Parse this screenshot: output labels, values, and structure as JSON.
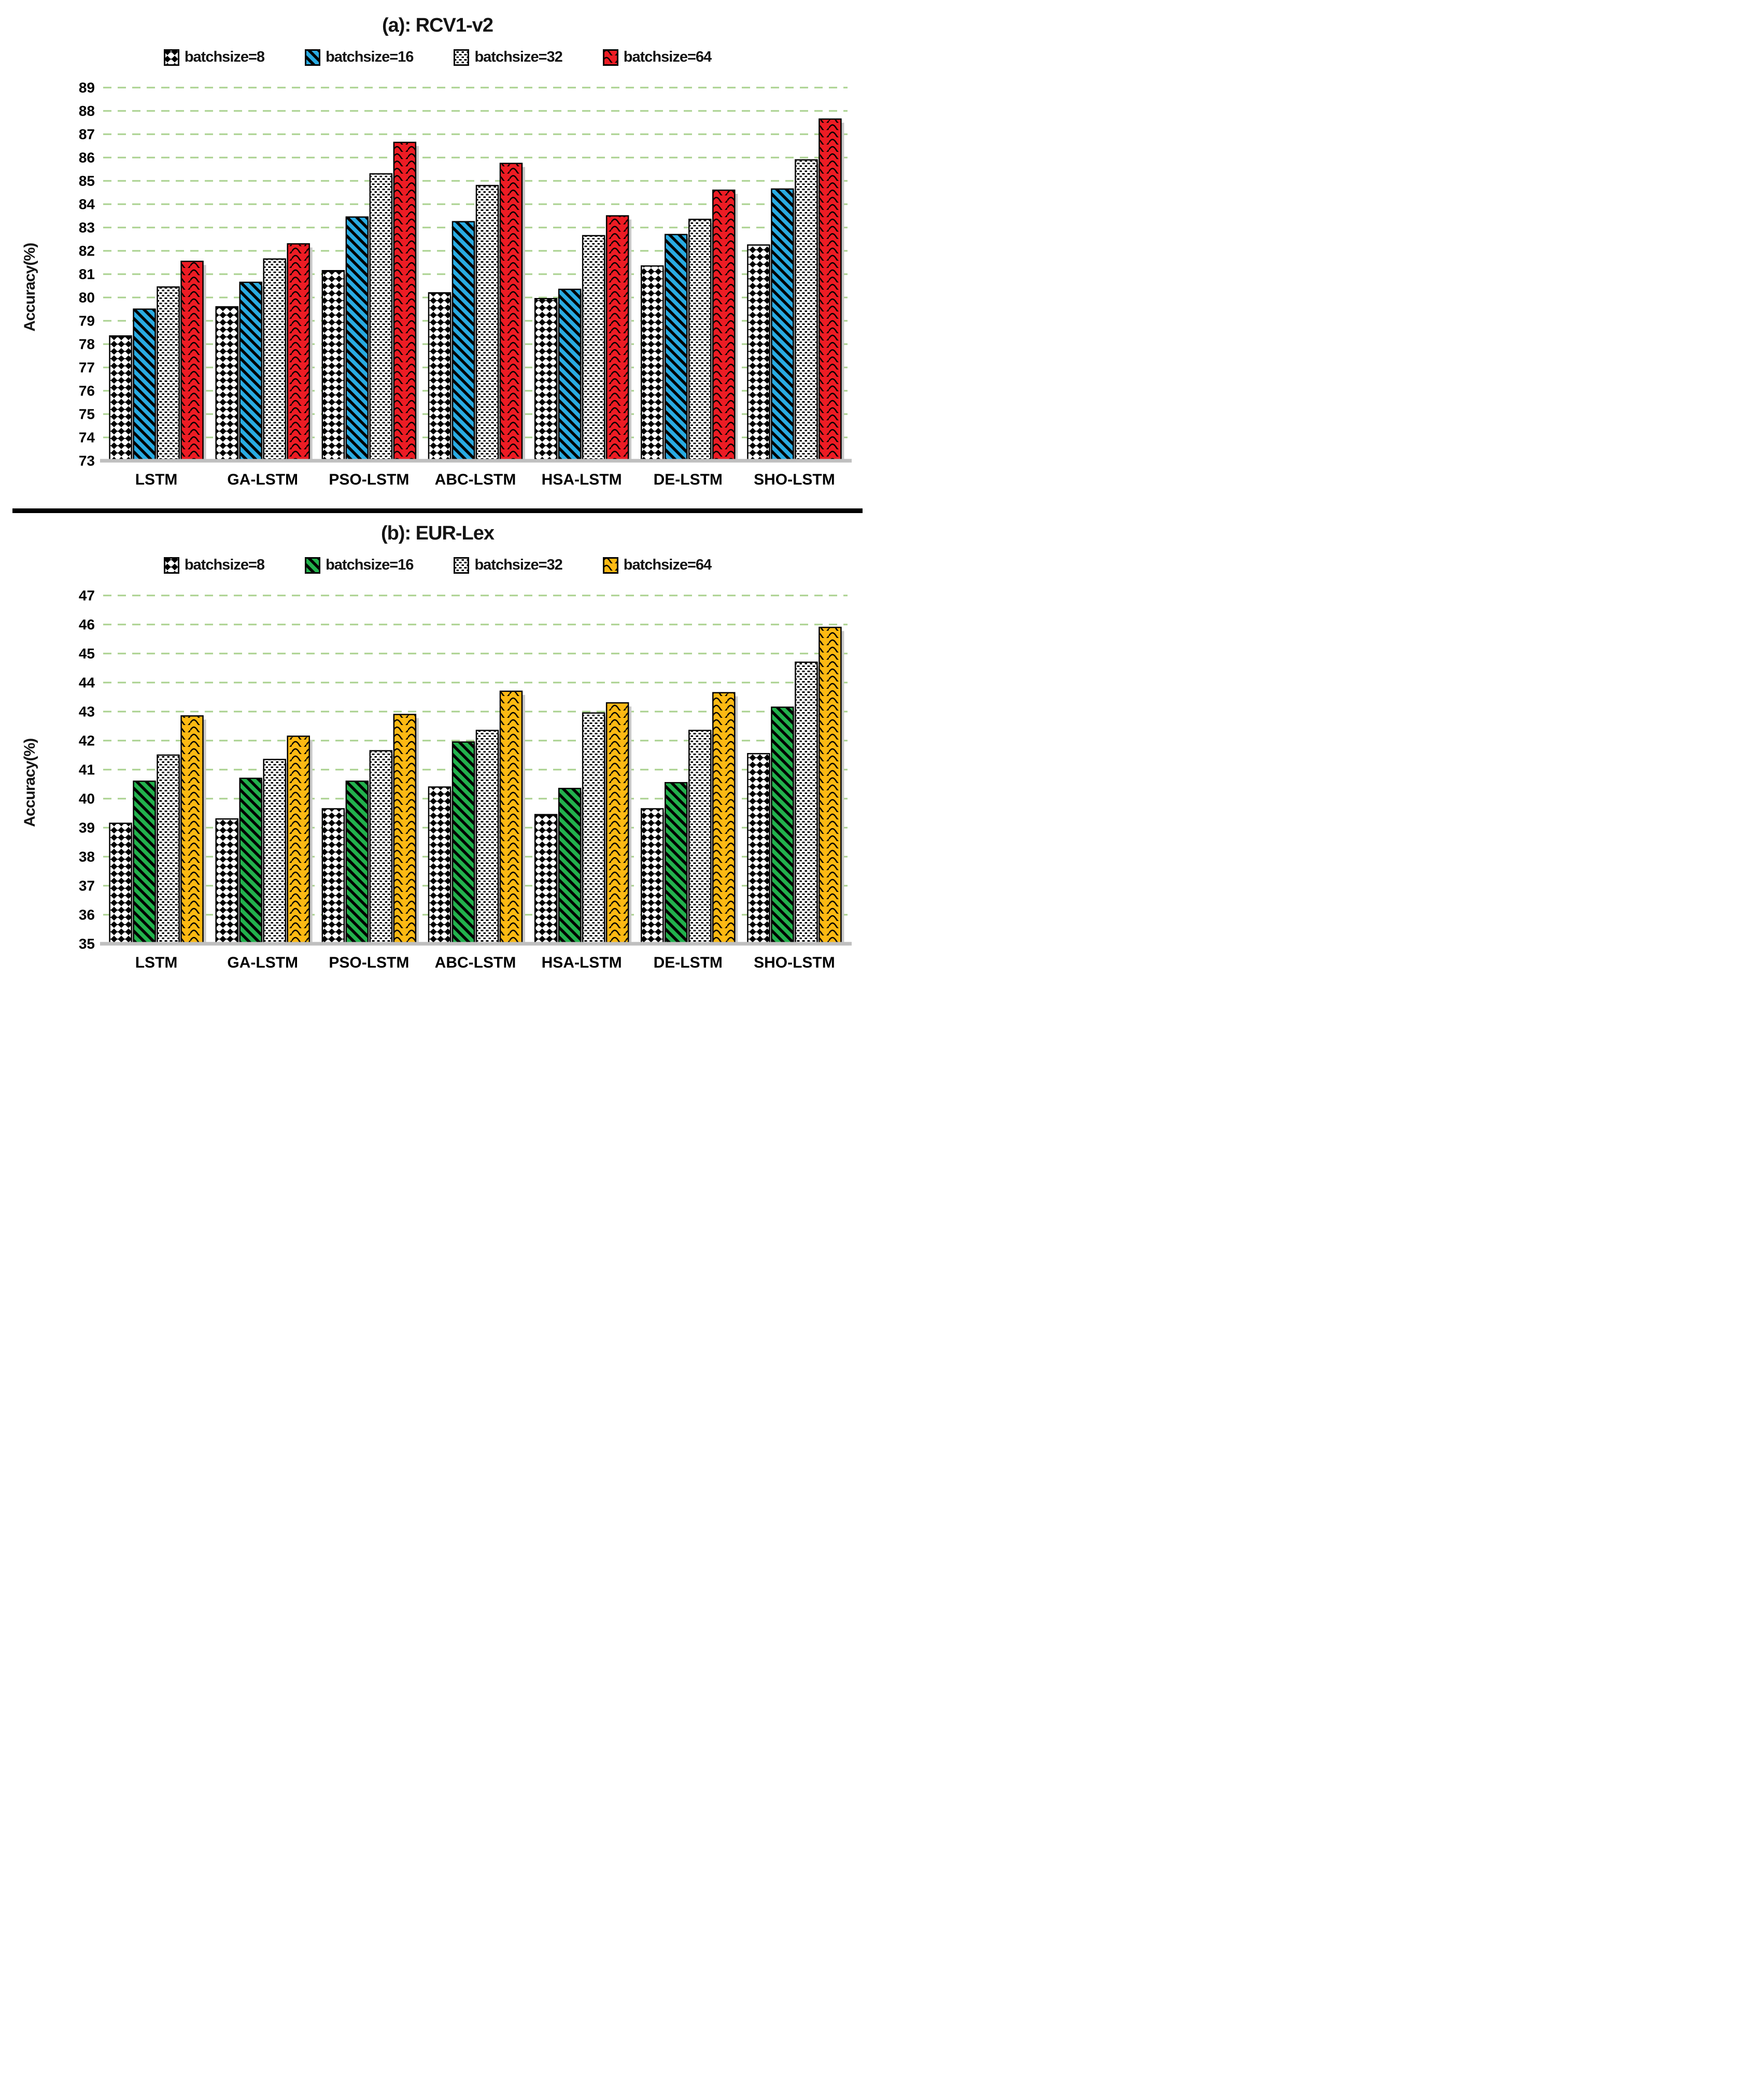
{
  "chart_data": [
    {
      "type": "bar",
      "title": "(a): RCV1-v2",
      "ylabel": "Accuracy(%)",
      "xlabel": "",
      "categories": [
        "LSTM",
        "GA-LSTM",
        "PSO-LSTM",
        "ABC-LSTM",
        "HSA-LSTM",
        "DE-LSTM",
        "SHO-LSTM"
      ],
      "series": [
        {
          "name": "batchsize=8",
          "pattern": "diamond",
          "color": "#FFFFFF",
          "values": [
            78.35,
            79.6,
            81.15,
            80.2,
            79.95,
            81.35,
            82.25
          ]
        },
        {
          "name": "batchsize=16",
          "pattern": "stripe",
          "color": "#29ABE2",
          "values": [
            79.5,
            80.65,
            83.45,
            83.25,
            80.35,
            82.7,
            84.65
          ]
        },
        {
          "name": "batchsize=32",
          "pattern": "dots",
          "color": "#FFFFFF",
          "values": [
            80.45,
            81.65,
            85.3,
            84.8,
            82.65,
            83.35,
            85.9
          ]
        },
        {
          "name": "batchsize=64",
          "pattern": "wave",
          "color": "#ED1C24",
          "values": [
            81.55,
            82.3,
            86.65,
            85.75,
            83.5,
            84.6,
            87.65
          ]
        }
      ],
      "ylim": [
        73,
        89
      ],
      "yticks": [
        73,
        74,
        75,
        76,
        77,
        78,
        79,
        80,
        81,
        82,
        83,
        84,
        85,
        86,
        87,
        88,
        89
      ],
      "grid": true,
      "gridline_color": "#A9D18E",
      "baseline_color": "#BFBFBF",
      "legend_position": "top"
    },
    {
      "type": "bar",
      "title": "(b): EUR-Lex",
      "ylabel": "Accuracy(%)",
      "xlabel": "",
      "categories": [
        "LSTM",
        "GA-LSTM",
        "PSO-LSTM",
        "ABC-LSTM",
        "HSA-LSTM",
        "DE-LSTM",
        "SHO-LSTM"
      ],
      "series": [
        {
          "name": "batchsize=8",
          "pattern": "diamond",
          "color": "#FFFFFF",
          "values": [
            39.15,
            39.3,
            39.65,
            40.4,
            39.45,
            39.65,
            41.55
          ]
        },
        {
          "name": "batchsize=16",
          "pattern": "stripe",
          "color": "#22B14C",
          "values": [
            40.6,
            40.7,
            40.6,
            41.95,
            40.35,
            40.55,
            43.15
          ]
        },
        {
          "name": "batchsize=32",
          "pattern": "dots",
          "color": "#FFFFFF",
          "values": [
            41.5,
            41.35,
            41.65,
            42.35,
            42.95,
            42.35,
            44.7
          ]
        },
        {
          "name": "batchsize=64",
          "pattern": "wave",
          "color": "#FDB913",
          "values": [
            42.85,
            42.15,
            42.9,
            43.7,
            43.3,
            43.65,
            45.9
          ]
        }
      ],
      "ylim": [
        35,
        47
      ],
      "yticks": [
        35,
        36,
        37,
        38,
        39,
        40,
        41,
        42,
        43,
        44,
        45,
        46,
        47
      ],
      "grid": true,
      "gridline_color": "#A9D18E",
      "baseline_color": "#BFBFBF",
      "legend_position": "top"
    }
  ]
}
